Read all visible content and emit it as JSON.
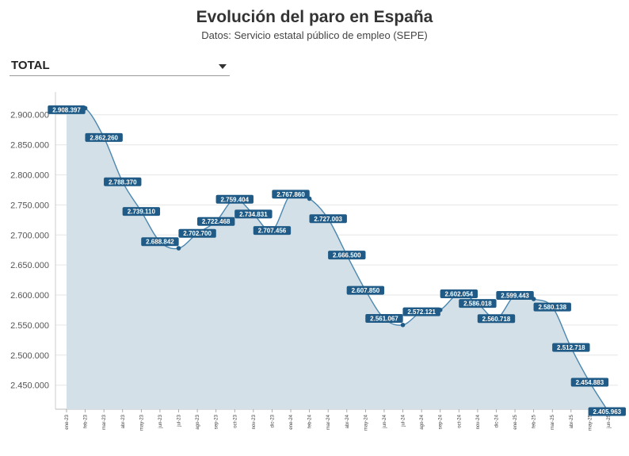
{
  "header": {
    "title": "Evolución del paro en España",
    "subtitle": "Datos: Servicio estatal público de empleo (SEPE)"
  },
  "selector": {
    "value": "TOTAL"
  },
  "colors": {
    "line": "#4a87b0",
    "fill": "#d3e0e8",
    "label_bg": "#1f5b86",
    "grid": "#e6e6e6"
  },
  "icons": {
    "dropdown": "caret-down-icon"
  },
  "chart_data": {
    "type": "area",
    "title": "Evolución del paro en España",
    "subtitle": "Datos: Servicio estatal público de empleo (SEPE)",
    "xlabel": "",
    "ylabel": "",
    "ylim": [
      2410000,
      2930000
    ],
    "grid": true,
    "y_ticks": [
      2900000,
      2850000,
      2800000,
      2750000,
      2700000,
      2650000,
      2600000,
      2550000,
      2500000,
      2450000
    ],
    "y_tick_labels": [
      "2.900.000",
      "2.850.000",
      "2.800.000",
      "2.750.000",
      "2.700.000",
      "2.650.000",
      "2.600.000",
      "2.550.000",
      "2.500.000",
      "2.450.000"
    ],
    "categories": [
      "ene-23",
      "feb-23",
      "mar-23",
      "abr-23",
      "may-23",
      "jun-23",
      "jul-23",
      "ago-23",
      "sep-23",
      "oct-23",
      "nov-23",
      "dic-23",
      "ene-24",
      "feb-24",
      "mar-24",
      "abr-24",
      "may-24",
      "jun-24",
      "jul-24",
      "ago-24",
      "sep-24",
      "oct-24",
      "nov-24",
      "dic-24",
      "ene-25",
      "feb-25",
      "mar-25",
      "abr-25",
      "may-25",
      "jun-25"
    ],
    "values": [
      2908397,
      2911015,
      2862260,
      2788370,
      2739110,
      2688842,
      2677874,
      2702700,
      2722468,
      2759404,
      2734831,
      2707456,
      2767860,
      2760408,
      2727003,
      2666500,
      2607850,
      2561067,
      2550237,
      2572121,
      2575285,
      2602054,
      2586018,
      2560718,
      2599443,
      2593449,
      2580138,
      2512718,
      2454883,
      2405963
    ],
    "data_labels": [
      "2.908.397",
      null,
      "2.862.260",
      "2.788.370",
      "2.739.110",
      "2.688.842",
      null,
      "2.702.700",
      "2.722.468",
      "2.759.404",
      "2.734.831",
      "2.707.456",
      "2.767.860",
      null,
      "2.727.003",
      "2.666.500",
      "2.607.850",
      "2.561.067",
      null,
      "2.572.121",
      null,
      "2.602.054",
      "2.586.018",
      "2.560.718",
      "2.599.443",
      null,
      "2.580.138",
      "2.512.718",
      "2.454.883",
      "2.405.963"
    ]
  }
}
